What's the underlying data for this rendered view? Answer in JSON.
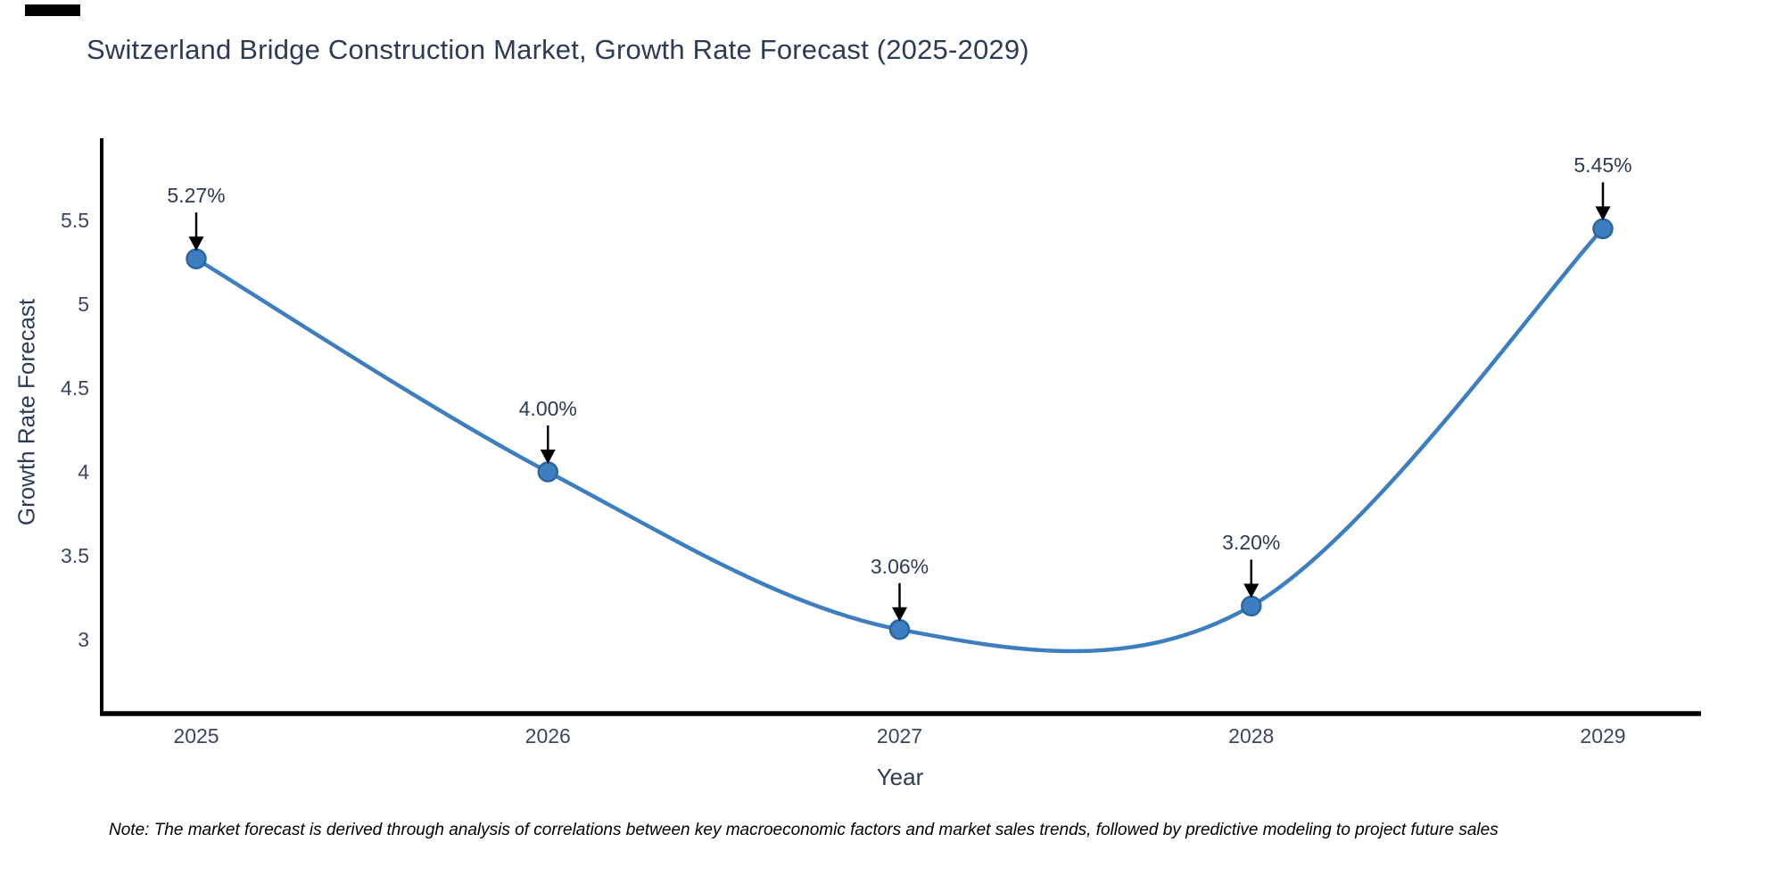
{
  "artifact": {
    "present": true
  },
  "header": {
    "title": "Switzerland Bridge Construction Market, Growth Rate Forecast (2025-2029)"
  },
  "footer": {
    "note": "Note: The market forecast is derived through analysis of correlations between key macroeconomic factors and market sales trends, followed by predictive modeling to project future sales"
  },
  "chart_data": {
    "type": "line",
    "title": "Switzerland Bridge Construction Market, Growth Rate Forecast (2025-2029)",
    "xlabel": "Year",
    "ylabel": "Growth Rate Forecast",
    "x": [
      2025,
      2026,
      2027,
      2028,
      2029
    ],
    "y": [
      5.27,
      4.0,
      3.06,
      3.2,
      5.45
    ],
    "point_labels": [
      "5.27%",
      "4.00%",
      "3.06%",
      "3.20%",
      "5.45%"
    ],
    "y_ticks": [
      3,
      3.5,
      4,
      4.5,
      5,
      5.5
    ],
    "x_ticks": [
      "2025",
      "2026",
      "2027",
      "2028",
      "2029"
    ],
    "line_shape": "spline",
    "grid": false,
    "legend_position": "none",
    "ylim_visible": [
      2.55,
      6.1
    ],
    "colors": {
      "line": "#3C7EBF",
      "marker_fill": "#3C7EBF",
      "marker_edge": "#2A679E",
      "axis_spine": "#000000",
      "annotation_arrow": "#000000",
      "text": "#2e3b54"
    }
  }
}
